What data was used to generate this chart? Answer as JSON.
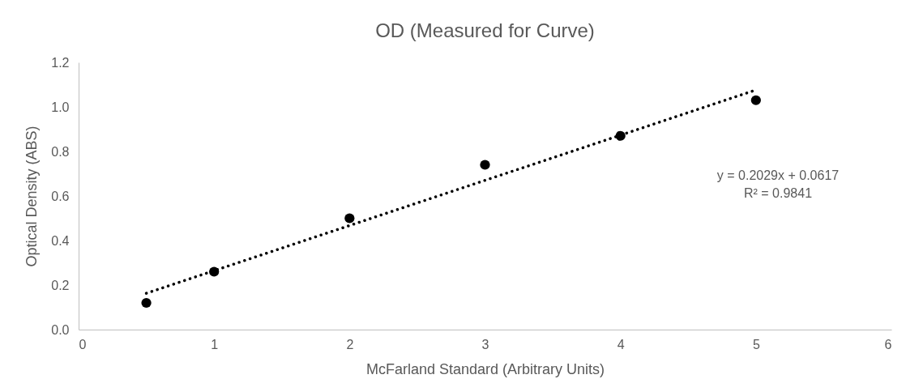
{
  "chart_data": {
    "type": "scatter",
    "title": "OD (Measured for Curve)",
    "xlabel": "McFarland Standard (Arbitrary Units)",
    "ylabel": "Optical Density (ABS)",
    "x": [
      0.5,
      1,
      2,
      3,
      4,
      5
    ],
    "series": [
      {
        "color": "#000000",
        "marker": "circle",
        "values": [
          0.12,
          0.26,
          0.5,
          0.74,
          0.87,
          1.03
        ]
      },
      {
        "type": "line",
        "color": "#000000",
        "line_style": "dotted",
        "x": [
          0.5,
          5
        ],
        "values": [
          0.163,
          1.076
        ]
      }
    ],
    "xlim": [
      0,
      6
    ],
    "xticks": [
      0,
      1,
      2,
      3,
      4,
      5,
      6
    ],
    "ylim": [
      0,
      1.2
    ],
    "yticks": [
      {
        "value": 0,
        "label": "0.0"
      },
      0.2,
      0.4,
      0.6,
      0.8,
      {
        "value": 1,
        "label": "1.0"
      },
      1.2
    ],
    "grid": false,
    "annotations": [
      "y = 0.2029x + 0.0617",
      "R² = 0.9841"
    ]
  }
}
